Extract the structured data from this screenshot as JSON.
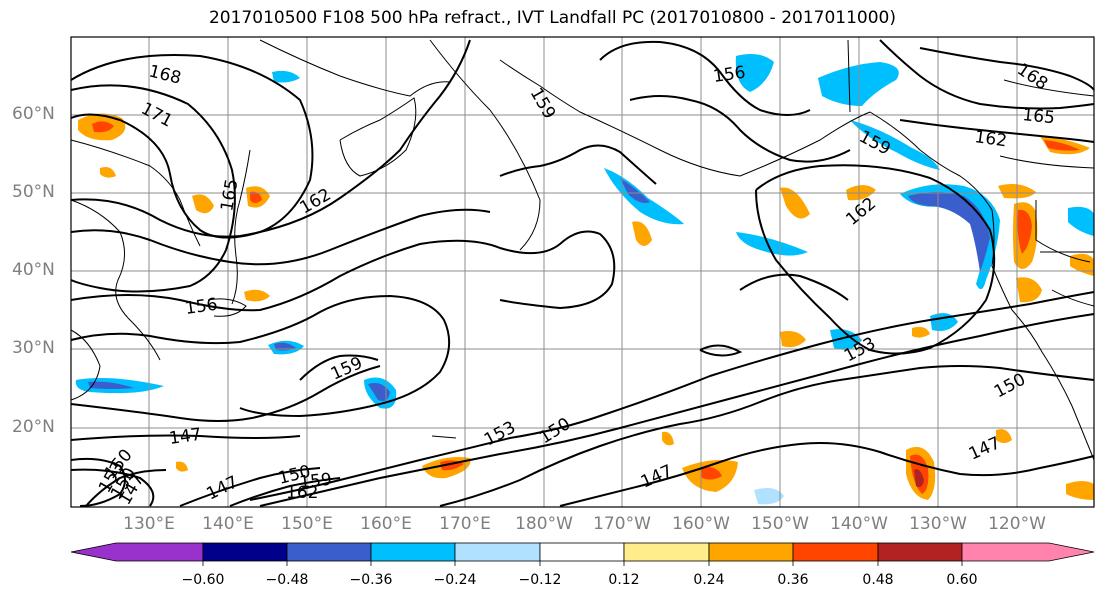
{
  "title": "2017010500 F108 500 hPa refract., IVT Landfall PC (2017010800 - 2017011000)",
  "latitude_labels": [
    "60°N",
    "50°N",
    "40°N",
    "30°N",
    "20°N"
  ],
  "longitude_labels": [
    "130°E",
    "140°E",
    "150°E",
    "160°E",
    "170°E",
    "180°W",
    "170°W",
    "160°W",
    "150°W",
    "140°W",
    "130°W",
    "120°W"
  ],
  "contour_labels": [
    "168",
    "171",
    "165",
    "162",
    "156",
    "159",
    "165",
    "168",
    "162",
    "159",
    "162",
    "156",
    "159",
    "153",
    "150",
    "147",
    "153",
    "150",
    "147",
    "147",
    "150",
    "159",
    "162",
    "150",
    "147",
    "153",
    "150",
    "147"
  ],
  "colorbar": {
    "tick_labels": [
      "−0.60",
      "−0.48",
      "−0.36",
      "−0.24",
      "−0.12",
      "0.12",
      "0.24",
      "0.36",
      "0.48",
      "0.60"
    ],
    "colors": [
      "#9932cc",
      "#00008b",
      "#3a5fcd",
      "#00bfff",
      "#b0e2ff",
      "#ffffff",
      "#ffec8b",
      "#ffa500",
      "#ff4500",
      "#b22222",
      "#ff83ac"
    ]
  }
}
